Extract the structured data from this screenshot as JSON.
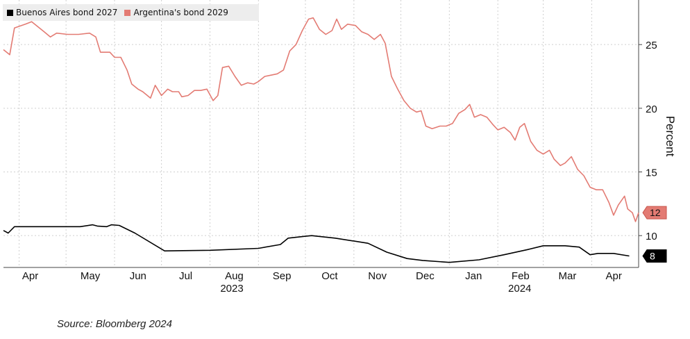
{
  "legend": {
    "series_a": "Buenos Aires bond 2027",
    "series_b": "Argentina's bond 2029"
  },
  "source": "Source: Bloomberg 2024",
  "chart_data": {
    "type": "line",
    "title": "",
    "xlabel": "",
    "ylabel": "Percent",
    "ylim": [
      7.5,
      28.5
    ],
    "y_ticks": [
      10,
      15,
      20,
      25
    ],
    "x_tick_labels": [
      "Apr",
      "May",
      "Jun",
      "Jul",
      "Aug",
      "Sep",
      "Oct",
      "Nov",
      "Dec",
      "Jan",
      "Feb",
      "Mar",
      "Apr"
    ],
    "x_year_labels": [
      {
        "label": "2023",
        "at": "2023-08-15"
      },
      {
        "label": "2024",
        "at": "2024-02-15"
      }
    ],
    "x_ticks": [
      "2023-04-01",
      "2023-05-01",
      "2023-06-01",
      "2023-07-01",
      "2023-08-01",
      "2023-09-01",
      "2023-10-01",
      "2023-11-01",
      "2023-12-01",
      "2024-01-01",
      "2024-02-01",
      "2024-03-01",
      "2024-04-01"
    ],
    "x_range": [
      "2023-03-22",
      "2024-05-01"
    ],
    "grid": "dashed",
    "legend_position": "top-left",
    "series": [
      {
        "name": "Buenos Aires bond 2027",
        "color": "#000000",
        "end_label": "8",
        "points": [
          [
            "2023-03-22",
            10.4
          ],
          [
            "2023-03-25",
            10.2
          ],
          [
            "2023-03-29",
            10.7
          ],
          [
            "2023-04-05",
            10.7
          ],
          [
            "2023-04-20",
            10.7
          ],
          [
            "2023-05-10",
            10.7
          ],
          [
            "2023-05-18",
            10.85
          ],
          [
            "2023-05-21",
            10.75
          ],
          [
            "2023-05-27",
            10.7
          ],
          [
            "2023-05-30",
            10.85
          ],
          [
            "2023-06-04",
            10.8
          ],
          [
            "2023-06-14",
            10.2
          ],
          [
            "2023-07-03",
            8.8
          ],
          [
            "2023-08-01",
            8.85
          ],
          [
            "2023-09-01",
            9.0
          ],
          [
            "2023-09-15",
            9.3
          ],
          [
            "2023-09-20",
            9.8
          ],
          [
            "2023-10-01",
            9.95
          ],
          [
            "2023-10-05",
            10.0
          ],
          [
            "2023-10-20",
            9.8
          ],
          [
            "2023-11-10",
            9.4
          ],
          [
            "2023-11-22",
            8.7
          ],
          [
            "2023-12-05",
            8.2
          ],
          [
            "2023-12-15",
            8.05
          ],
          [
            "2024-01-01",
            7.9
          ],
          [
            "2024-01-20",
            8.1
          ],
          [
            "2024-02-05",
            8.5
          ],
          [
            "2024-02-20",
            8.9
          ],
          [
            "2024-03-01",
            9.2
          ],
          [
            "2024-03-15",
            9.2
          ],
          [
            "2024-03-24",
            9.1
          ],
          [
            "2024-03-31",
            8.5
          ],
          [
            "2024-04-05",
            8.6
          ],
          [
            "2024-04-15",
            8.6
          ],
          [
            "2024-04-25",
            8.4
          ]
        ]
      },
      {
        "name": "Argentina's bond 2029",
        "color": "#e37b73",
        "end_label": "12",
        "points": [
          [
            "2023-03-22",
            24.6
          ],
          [
            "2023-03-26",
            24.2
          ],
          [
            "2023-03-29",
            26.3
          ],
          [
            "2023-04-05",
            26.6
          ],
          [
            "2023-04-09",
            26.8
          ],
          [
            "2023-04-13",
            26.4
          ],
          [
            "2023-04-17",
            26.0
          ],
          [
            "2023-04-21",
            25.6
          ],
          [
            "2023-04-25",
            25.9
          ],
          [
            "2023-05-02",
            25.8
          ],
          [
            "2023-05-09",
            25.8
          ],
          [
            "2023-05-16",
            25.9
          ],
          [
            "2023-05-20",
            25.6
          ],
          [
            "2023-05-23",
            24.4
          ],
          [
            "2023-05-29",
            24.4
          ],
          [
            "2023-06-01",
            24.0
          ],
          [
            "2023-06-05",
            24.0
          ],
          [
            "2023-06-09",
            23.0
          ],
          [
            "2023-06-12",
            21.9
          ],
          [
            "2023-06-16",
            21.5
          ],
          [
            "2023-06-19",
            21.3
          ],
          [
            "2023-06-22",
            21.0
          ],
          [
            "2023-06-24",
            20.8
          ],
          [
            "2023-06-27",
            21.8
          ],
          [
            "2023-07-01",
            21.0
          ],
          [
            "2023-07-05",
            21.5
          ],
          [
            "2023-07-08",
            21.3
          ],
          [
            "2023-07-12",
            21.3
          ],
          [
            "2023-07-14",
            20.9
          ],
          [
            "2023-07-18",
            21.0
          ],
          [
            "2023-07-22",
            21.4
          ],
          [
            "2023-07-26",
            21.4
          ],
          [
            "2023-07-30",
            21.5
          ],
          [
            "2023-08-03",
            20.6
          ],
          [
            "2023-08-06",
            21.0
          ],
          [
            "2023-08-09",
            23.2
          ],
          [
            "2023-08-13",
            23.3
          ],
          [
            "2023-08-17",
            22.5
          ],
          [
            "2023-08-21",
            21.8
          ],
          [
            "2023-08-25",
            22.0
          ],
          [
            "2023-08-29",
            21.9
          ],
          [
            "2023-09-01",
            22.1
          ],
          [
            "2023-09-05",
            22.5
          ],
          [
            "2023-09-09",
            22.6
          ],
          [
            "2023-09-13",
            22.7
          ],
          [
            "2023-09-17",
            23.0
          ],
          [
            "2023-09-21",
            24.5
          ],
          [
            "2023-09-25",
            25.0
          ],
          [
            "2023-09-29",
            26.1
          ],
          [
            "2023-10-03",
            27.0
          ],
          [
            "2023-10-06",
            27.1
          ],
          [
            "2023-10-10",
            26.2
          ],
          [
            "2023-10-14",
            25.8
          ],
          [
            "2023-10-18",
            26.1
          ],
          [
            "2023-10-21",
            27.0
          ],
          [
            "2023-10-24",
            26.2
          ],
          [
            "2023-10-28",
            26.6
          ],
          [
            "2023-11-02",
            26.5
          ],
          [
            "2023-11-06",
            26.0
          ],
          [
            "2023-11-10",
            25.8
          ],
          [
            "2023-11-14",
            25.4
          ],
          [
            "2023-11-18",
            25.8
          ],
          [
            "2023-11-21",
            25.1
          ],
          [
            "2023-11-25",
            22.5
          ],
          [
            "2023-11-29",
            21.5
          ],
          [
            "2023-12-03",
            20.6
          ],
          [
            "2023-12-07",
            20.0
          ],
          [
            "2023-12-11",
            19.7
          ],
          [
            "2023-12-14",
            19.8
          ],
          [
            "2023-12-17",
            18.6
          ],
          [
            "2023-12-21",
            18.4
          ],
          [
            "2023-12-26",
            18.6
          ],
          [
            "2023-12-30",
            18.6
          ],
          [
            "2024-01-03",
            18.8
          ],
          [
            "2024-01-07",
            19.6
          ],
          [
            "2024-01-11",
            19.9
          ],
          [
            "2024-01-14",
            20.3
          ],
          [
            "2024-01-17",
            19.3
          ],
          [
            "2024-01-21",
            19.5
          ],
          [
            "2024-01-25",
            19.3
          ],
          [
            "2024-01-29",
            18.7
          ],
          [
            "2024-02-01",
            18.3
          ],
          [
            "2024-02-05",
            18.5
          ],
          [
            "2024-02-09",
            18.1
          ],
          [
            "2024-02-12",
            17.5
          ],
          [
            "2024-02-15",
            18.5
          ],
          [
            "2024-02-18",
            18.8
          ],
          [
            "2024-02-22",
            17.4
          ],
          [
            "2024-02-26",
            16.7
          ],
          [
            "2024-03-01",
            16.4
          ],
          [
            "2024-03-05",
            16.7
          ],
          [
            "2024-03-08",
            16.0
          ],
          [
            "2024-03-12",
            15.5
          ],
          [
            "2024-03-15",
            15.7
          ],
          [
            "2024-03-19",
            16.2
          ],
          [
            "2024-03-23",
            15.2
          ],
          [
            "2024-03-27",
            14.7
          ],
          [
            "2024-03-31",
            13.8
          ],
          [
            "2024-04-04",
            13.6
          ],
          [
            "2024-04-08",
            13.6
          ],
          [
            "2024-04-12",
            12.6
          ],
          [
            "2024-04-15",
            11.6
          ],
          [
            "2024-04-18",
            12.4
          ],
          [
            "2024-04-22",
            13.1
          ],
          [
            "2024-04-24",
            12.1
          ],
          [
            "2024-04-27",
            11.8
          ],
          [
            "2024-04-29",
            11.1
          ],
          [
            "2024-05-01",
            11.8
          ]
        ]
      }
    ]
  }
}
